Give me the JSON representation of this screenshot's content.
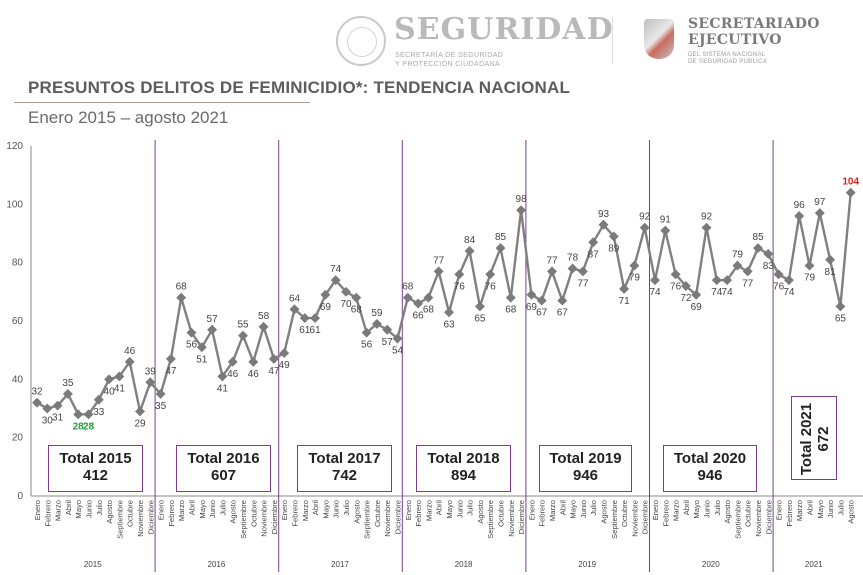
{
  "header": {
    "brand_main": "SEGURIDAD",
    "brand_main_sub1": "SECRETARÍA DE SEGURIDAD",
    "brand_main_sub2": "Y PROTECCIÓN CIUDADANA",
    "brand2_line1": "SECRETARIADO",
    "brand2_line2": "EJECUTIVO",
    "brand2_sub1": "DEL SISTEMA NACIONAL",
    "brand2_sub2": "DE SEGURIDAD PÚBLICA"
  },
  "chart_data": {
    "type": "line",
    "title": "PRESUNTOS DELITOS DE FEMINICIDIO*: TENDENCIA NACIONAL",
    "subtitle": "Enero 2015 – agosto 2021",
    "ylim": [
      0,
      120
    ],
    "yticks": [
      "0",
      "20",
      "40",
      "60",
      "80",
      "100",
      "120"
    ],
    "grid": false,
    "months": [
      "Enero",
      "Febrero",
      "Marzo",
      "Abril",
      "Mayo",
      "Junio",
      "Julio",
      "Agosto",
      "Septiembre",
      "Octubre",
      "Noviembre",
      "Diciembre"
    ],
    "years": [
      {
        "year": "2015",
        "total_label": "Total 2015",
        "total": "412",
        "values": [
          32,
          30,
          31,
          35,
          28,
          28,
          33,
          40,
          41,
          46,
          29,
          39
        ]
      },
      {
        "year": "2016",
        "total_label": "Total 2016",
        "total": "607",
        "values": [
          35,
          47,
          68,
          56,
          51,
          57,
          41,
          46,
          55,
          46,
          58,
          47
        ]
      },
      {
        "year": "2017",
        "total_label": "Total 2017",
        "total": "742",
        "values": [
          49,
          64,
          61,
          61,
          69,
          74,
          70,
          68,
          56,
          59,
          57,
          54
        ]
      },
      {
        "year": "2018",
        "total_label": "Total 2018",
        "total": "894",
        "values": [
          68,
          66,
          68,
          77,
          63,
          76,
          84,
          65,
          76,
          85,
          68,
          98
        ]
      },
      {
        "year": "2019",
        "total_label": "Total 2019",
        "total": "946",
        "values": [
          69,
          67,
          77,
          67,
          78,
          77,
          87,
          93,
          89,
          71,
          79,
          92
        ]
      },
      {
        "year": "2020",
        "total_label": "Total 2020",
        "total": "946",
        "values": [
          74,
          91,
          76,
          72,
          69,
          92,
          74,
          74,
          79,
          77,
          85,
          83
        ]
      },
      {
        "year": "2021",
        "total_label": "Total 2021",
        "total": "672",
        "values": [
          76,
          74,
          96,
          79,
          97,
          81,
          65,
          104
        ]
      }
    ],
    "label_colors": {
      "default": "#444444",
      "low": "#1e9e3a",
      "max": "#e0201b"
    },
    "highlight_low_labels": [
      [
        0,
        4
      ],
      [
        0,
        5
      ]
    ],
    "highlight_max_label": [
      6,
      7
    ],
    "line_color": "#808080",
    "separator_color": "#7b3f8e"
  }
}
